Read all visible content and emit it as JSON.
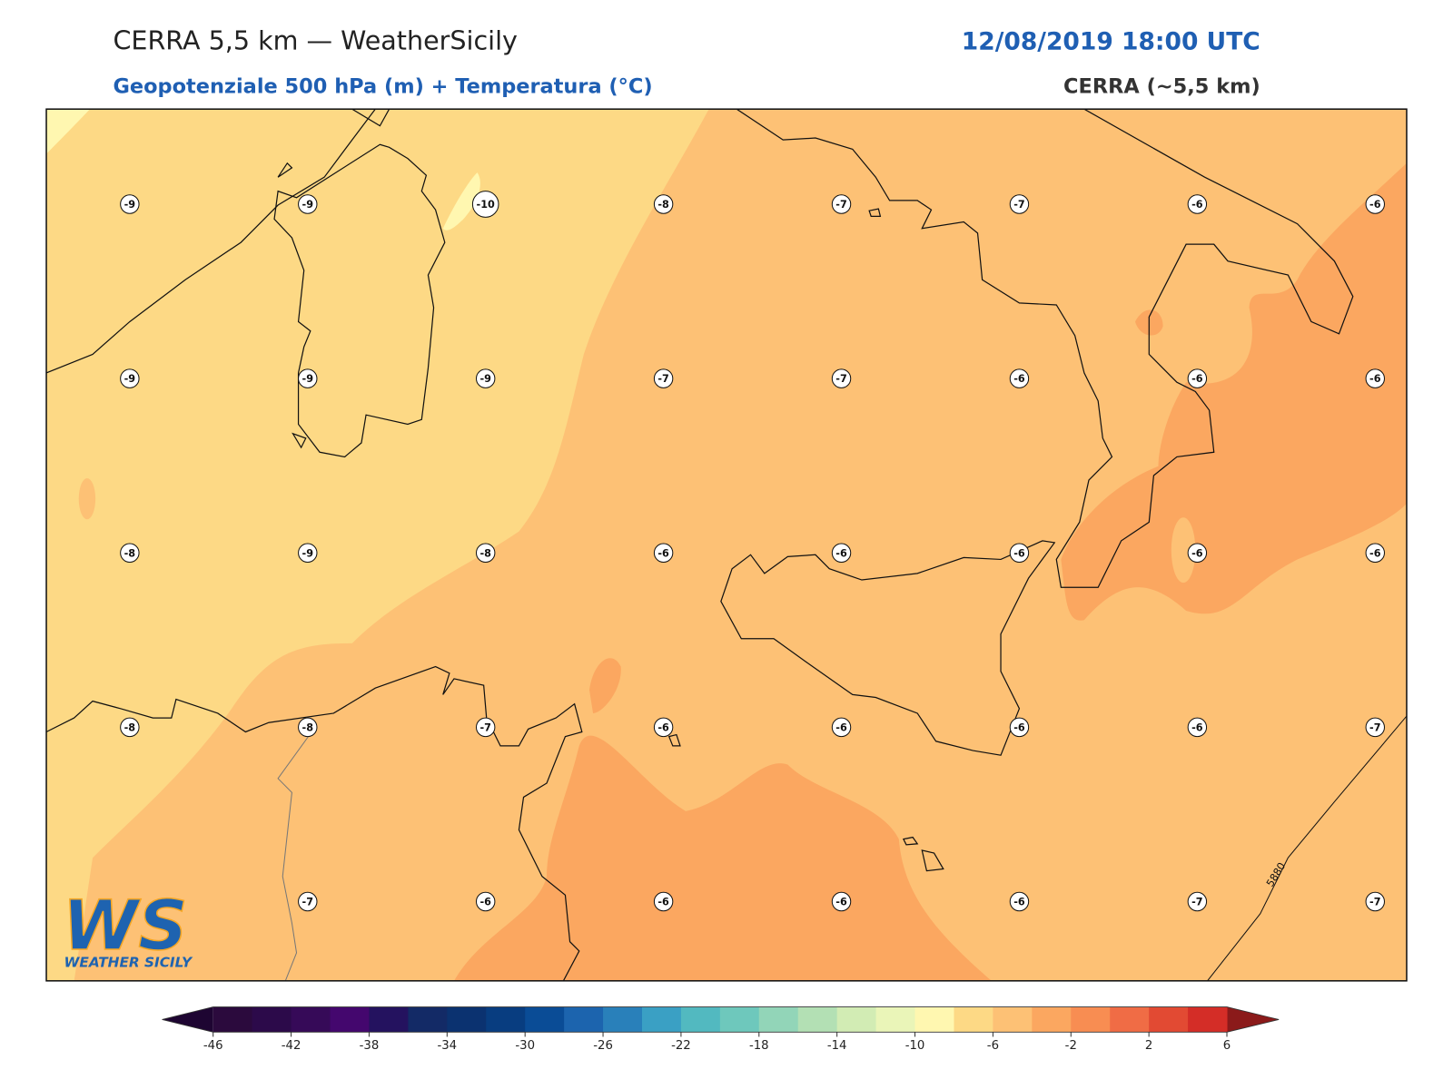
{
  "header": {
    "title": "CERRA 5,5 km — WeatherSicily",
    "datetime": "12/08/2019 18:00 UTC",
    "subtitle": "Geopotenziale 500 hPa (m) + Temperatura (°C)",
    "model": "CERRA (~5,5 km)"
  },
  "map": {
    "temperature_labels": [
      [
        -9,
        -9,
        -10,
        -8,
        -7,
        -7,
        -6,
        -6
      ],
      [
        -9,
        -9,
        -9,
        -7,
        -7,
        -6,
        -6,
        -6
      ],
      [
        -8,
        -9,
        -8,
        -6,
        -6,
        -6,
        -6,
        -6
      ],
      [
        -8,
        -8,
        -7,
        -6,
        -6,
        -6,
        -6,
        -7
      ],
      [
        null,
        -7,
        -6,
        -6,
        -6,
        -6,
        -7,
        -7
      ]
    ],
    "contour_label": "5880"
  },
  "colorbar": {
    "boundaries": [
      -46,
      -44,
      -42,
      -40,
      -38,
      -36,
      -34,
      -32,
      -30,
      -28,
      -26,
      -24,
      -22,
      -20,
      -18,
      -16,
      -14,
      -12,
      -10,
      -8,
      -6,
      -4,
      -2,
      0,
      2,
      4,
      6
    ],
    "ticks": [
      -46,
      -42,
      -38,
      -34,
      -30,
      -26,
      -22,
      -18,
      -14,
      -10,
      -6,
      -2,
      2,
      6
    ],
    "colors": [
      "#2b0a3d",
      "#2c0a4a",
      "#360a58",
      "#44076e",
      "#24125f",
      "#132a66",
      "#0b3270",
      "#083d80",
      "#0a4c96",
      "#1c64ae",
      "#2980ba",
      "#3aa0c4",
      "#52b9c0",
      "#6ec8bc",
      "#92d5b8",
      "#b3e0b4",
      "#d2ecb4",
      "#eaf5b8",
      "#fff7b0",
      "#fdd985",
      "#fdc175",
      "#fba760",
      "#f88d52",
      "#f06c45",
      "#e24a33",
      "#d42d27"
    ],
    "under_color": "#1e0532",
    "over_color": "#8b1a1a"
  },
  "logo": {
    "mark": "WS",
    "text": "WEATHER SICILY"
  }
}
